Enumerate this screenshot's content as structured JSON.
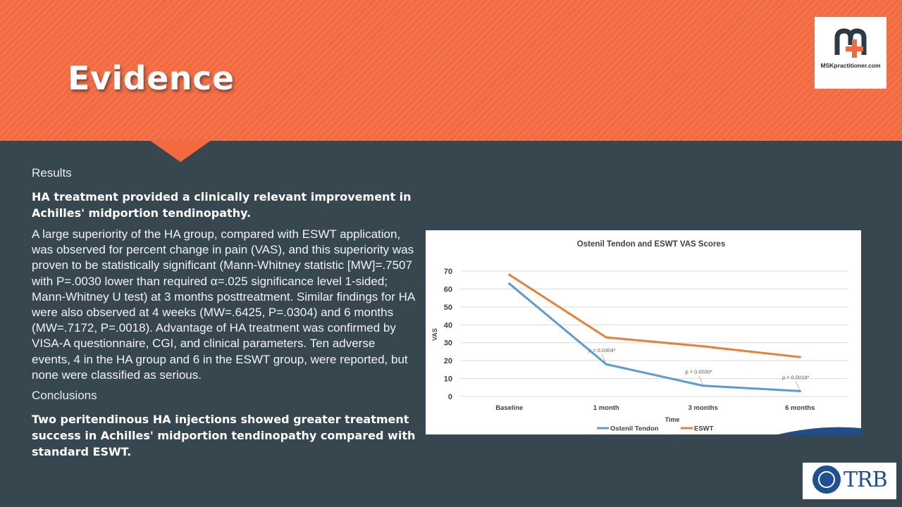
{
  "slide": {
    "title": "Evidence",
    "results_label": "Results",
    "results_headline": "HA treatment provided a clinically  relevant improvement in Achilles' midportion tendinopathy.",
    "results_body": "A large superiority of the HA group, compared with ESWT application, was observed for percent change in pain (VAS), and this superiority was proven to be statistically significant (Mann-Whitney statistic [MW]=.7507 with P=.0030 lower than required α=.025 significance level 1-sided; Mann-Whitney U test) at 3 months posttreatment. Similar findings for HA were also observed at 4 weeks (MW=.6425, P=.0304) and 6 months (MW=.7172, P=.0018). Advantage of HA treatment was confirmed by VISA-A questionnaire, CGI, and clinical parameters. Ten adverse events, 4 in the HA group and 6 in the ESWT group, were reported, but none were classified as serious.",
    "conclusions_label": "Conclusions",
    "conclusions_body": "Two peritendinous HA injections showed greater treatment success in Achilles' midportion tendinopathy compared with standard ESWT."
  },
  "logos": {
    "msk": {
      "site": "MSKpractitioner.com"
    },
    "trb": {
      "text": "TRB"
    }
  },
  "colors": {
    "header_orange": "#f26a40",
    "background": "#37474f",
    "series_ostenil": "#5b9bd5",
    "series_eswt": "#ed7d31"
  },
  "chart_data": {
    "type": "line",
    "title": "Ostenil Tendon and ESWT VAS Scores",
    "xlabel": "Time",
    "ylabel": "VAS",
    "categories": [
      "Baseline",
      "1 month",
      "3 months",
      "6 months"
    ],
    "ylim": [
      0,
      70
    ],
    "yticks": [
      0,
      10,
      20,
      30,
      40,
      50,
      60,
      70
    ],
    "grid": true,
    "legend": "bottom",
    "series": [
      {
        "name": "Ostenil Tendon",
        "values": [
          63,
          18,
          6,
          3
        ]
      },
      {
        "name": "ESWT",
        "values": [
          68,
          33,
          28,
          22
        ]
      }
    ],
    "annotations": [
      {
        "category": "1 month",
        "text": "p = 0.0304*"
      },
      {
        "category": "3 months",
        "text": "p = 0.0030*"
      },
      {
        "category": "6 months",
        "text": "p = 0.0018*"
      }
    ]
  }
}
